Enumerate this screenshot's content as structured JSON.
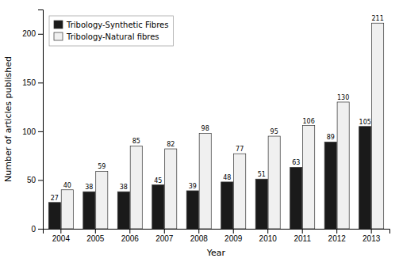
{
  "chart_data": {
    "type": "bar",
    "categories": [
      "2004",
      "2005",
      "2006",
      "2007",
      "2008",
      "2009",
      "2010",
      "2011",
      "2012",
      "2013"
    ],
    "series": [
      {
        "name": "Tribology-Synthetic Fibres",
        "color": "#1a1a1a",
        "values": [
          27,
          38,
          38,
          45,
          39,
          48,
          51,
          63,
          89,
          105
        ]
      },
      {
        "name": "Tribology-Natural fibres",
        "color": "#f0f0f0",
        "values": [
          40,
          59,
          85,
          82,
          98,
          77,
          95,
          106,
          130,
          211
        ]
      }
    ],
    "xlabel": "Year",
    "ylabel": "Number of articles published",
    "ylim": [
      0,
      225
    ],
    "yticks": [
      0,
      50,
      100,
      150,
      200
    ],
    "grid": false,
    "legend": "upper left",
    "data_labels": true
  }
}
